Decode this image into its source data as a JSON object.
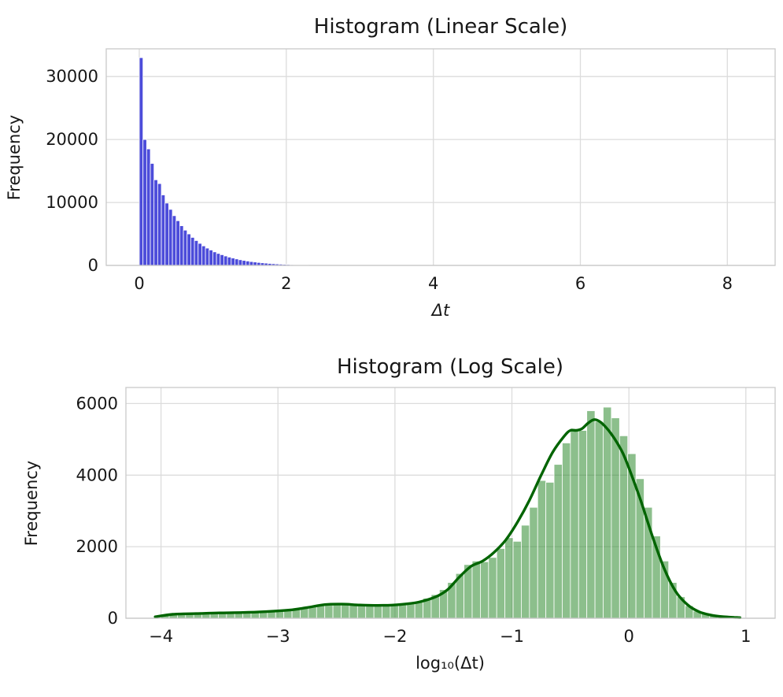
{
  "chart_data": [
    {
      "type": "bar",
      "chart_kind": "histogram",
      "title": "Histogram (Linear Scale)",
      "xlabel": "Δt",
      "ylabel": "Frequency",
      "xlim": [
        -0.45,
        8.65
      ],
      "ylim": [
        0,
        34400
      ],
      "xticks": [
        0,
        2,
        4,
        6,
        8
      ],
      "yticks": [
        0,
        10000,
        20000,
        30000
      ],
      "grid": true,
      "legend": false,
      "bar_color": "#3939d6",
      "bar_opacity": 0.9,
      "bin_start": 0,
      "bin_width": 0.05,
      "values": [
        33000,
        20000,
        18500,
        16200,
        13600,
        13000,
        11200,
        9900,
        8900,
        7900,
        7100,
        6300,
        5600,
        5000,
        4450,
        3950,
        3500,
        3100,
        2750,
        2450,
        2150,
        1900,
        1700,
        1500,
        1320,
        1170,
        1030,
        900,
        790,
        700,
        610,
        540,
        470,
        410,
        360,
        310,
        270,
        230,
        200,
        170,
        145,
        120,
        100,
        85,
        70,
        55
      ]
    },
    {
      "type": "bar",
      "chart_kind": "histogram+kde",
      "title": "Histogram (Log Scale)",
      "xlabel": "log₁₀(Δt)",
      "ylabel": "Frequency",
      "xlim": [
        -4.3,
        1.25
      ],
      "ylim": [
        0,
        6450
      ],
      "xticks": [
        -4,
        -3,
        -2,
        -1,
        0,
        1
      ],
      "yticks": [
        0,
        2000,
        4000,
        6000
      ],
      "grid": true,
      "legend": false,
      "bar_color": "#2e8b2e",
      "bar_opacity": 0.55,
      "bin_start": -4.0,
      "bin_width": 0.07,
      "values": [
        90,
        115,
        100,
        130,
        120,
        145,
        130,
        155,
        145,
        165,
        155,
        175,
        165,
        185,
        195,
        215,
        245,
        285,
        325,
        365,
        395,
        405,
        385,
        370,
        360,
        350,
        360,
        370,
        385,
        400,
        430,
        480,
        560,
        660,
        800,
        1000,
        1250,
        1500,
        1600,
        1580,
        1700,
        1950,
        2250,
        2150,
        2600,
        3100,
        3850,
        3800,
        4300,
        4900,
        5300,
        5250,
        5800,
        5500,
        5900,
        5600,
        5100,
        4600,
        3900,
        3100,
        2300,
        1600,
        1000,
        600,
        350,
        200,
        120,
        70,
        40,
        20
      ],
      "kde": {
        "color": "#006400",
        "x": [
          -4.05,
          -3.9,
          -3.7,
          -3.5,
          -3.3,
          -3.1,
          -2.9,
          -2.75,
          -2.6,
          -2.45,
          -2.3,
          -2.1,
          -1.95,
          -1.8,
          -1.65,
          -1.55,
          -1.45,
          -1.35,
          -1.25,
          -1.15,
          -1.05,
          -0.95,
          -0.85,
          -0.75,
          -0.65,
          -0.55,
          -0.5,
          -0.45,
          -0.4,
          -0.35,
          -0.3,
          -0.25,
          -0.2,
          -0.15,
          -0.1,
          -0.05,
          0.0,
          0.1,
          0.2,
          0.3,
          0.4,
          0.5,
          0.6,
          0.7,
          0.8,
          0.9,
          0.95
        ],
        "y": [
          40,
          110,
          130,
          150,
          160,
          185,
          230,
          300,
          380,
          395,
          370,
          360,
          385,
          450,
          600,
          800,
          1150,
          1450,
          1600,
          1850,
          2200,
          2700,
          3300,
          4000,
          4650,
          5100,
          5250,
          5250,
          5300,
          5450,
          5550,
          5500,
          5350,
          5150,
          4900,
          4600,
          4200,
          3300,
          2300,
          1400,
          750,
          380,
          180,
          90,
          45,
          25,
          15
        ]
      }
    }
  ]
}
